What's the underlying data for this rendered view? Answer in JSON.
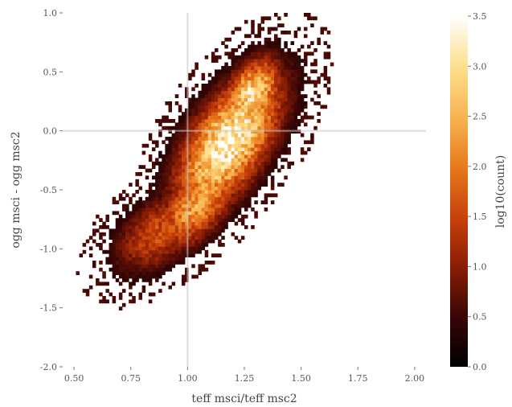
{
  "chart_data": {
    "type": "heatmap",
    "title": "",
    "xlabel": "teff msci/teff msc2",
    "ylabel": "ogg msci - ogg msc2",
    "xlim": [
      0.45,
      2.05
    ],
    "ylim": [
      -2.0,
      1.0
    ],
    "x_ticks": [
      {
        "value": 0.5,
        "label": "0.50"
      },
      {
        "value": 0.75,
        "label": "0.75"
      },
      {
        "value": 1.0,
        "label": "1.00"
      },
      {
        "value": 1.25,
        "label": "1.25"
      },
      {
        "value": 1.5,
        "label": "1.50"
      },
      {
        "value": 1.75,
        "label": "1.75"
      },
      {
        "value": 2.0,
        "label": "2.00"
      }
    ],
    "y_ticks": [
      {
        "value": 1.0,
        "label": "1.0"
      },
      {
        "value": 0.5,
        "label": "0.5"
      },
      {
        "value": 0.0,
        "label": "0.0"
      },
      {
        "value": -0.5,
        "label": "-0.5"
      },
      {
        "value": -1.0,
        "label": "-1.0"
      },
      {
        "value": -1.5,
        "label": "-1.5"
      },
      {
        "value": -2.0,
        "label": "-2.0"
      }
    ],
    "reference_lines": {
      "x": 1.0,
      "y": 0.0
    },
    "grid": false,
    "colormap": [
      "#000000",
      "#3a0606",
      "#8a1d05",
      "#c9420b",
      "#e87a1c",
      "#f7b552",
      "#fde08f",
      "#ffffff"
    ],
    "colorbar": {
      "label": "log10(count)",
      "range": [
        0.0,
        3.5
      ],
      "ticks": [
        {
          "value": 0.0,
          "label": "0.0"
        },
        {
          "value": 0.5,
          "label": "0.5"
        },
        {
          "value": 1.0,
          "label": "1.0"
        },
        {
          "value": 1.5,
          "label": "1.5"
        },
        {
          "value": 2.0,
          "label": "2.0"
        },
        {
          "value": 2.5,
          "label": "2.5"
        },
        {
          "value": 3.0,
          "label": "3.0"
        },
        {
          "value": 3.5,
          "label": "3.5"
        }
      ]
    },
    "density_components": [
      {
        "x": 1.18,
        "y": -0.1,
        "sx": 0.16,
        "sy": 0.4,
        "rho": 0.6,
        "peak": 3.3
      },
      {
        "x": 1.05,
        "y": -0.6,
        "sx": 0.13,
        "sy": 0.28,
        "rho": 0.6,
        "peak": 2.4
      },
      {
        "x": 1.28,
        "y": 0.3,
        "sx": 0.09,
        "sy": 0.22,
        "rho": 0.4,
        "peak": 3.0
      },
      {
        "x": 0.88,
        "y": -0.85,
        "sx": 0.14,
        "sy": 0.25,
        "rho": 0.5,
        "peak": 1.6
      }
    ]
  }
}
